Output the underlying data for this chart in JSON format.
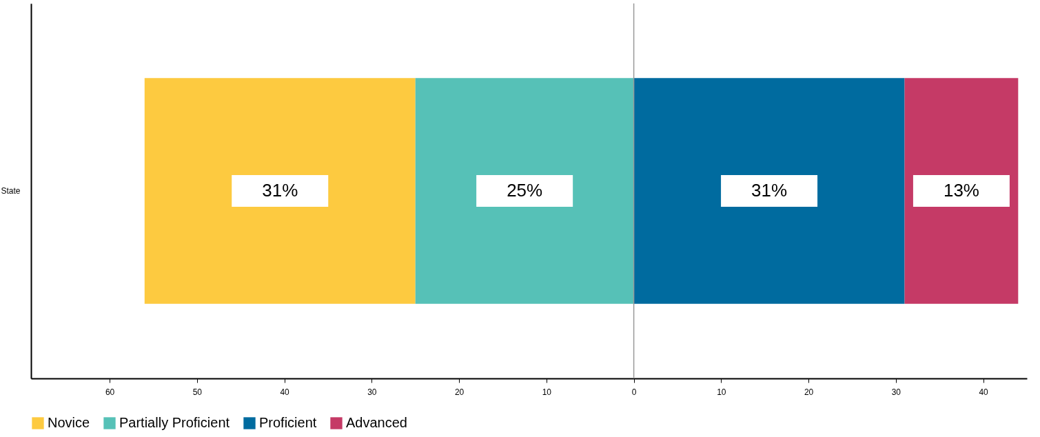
{
  "chart_data": {
    "type": "bar",
    "orientation": "horizontal",
    "categories": [
      "State"
    ],
    "series": [
      {
        "name": "Novice",
        "color": "#fdca40",
        "values": [
          31
        ],
        "base": [
          -56
        ],
        "value_labels": [
          "31%"
        ]
      },
      {
        "name": "Partially Proficient",
        "color": "#56c1b7",
        "values": [
          25
        ],
        "base": [
          -25
        ],
        "value_labels": [
          "25%"
        ]
      },
      {
        "name": "Proficient",
        "color": "#006b9f",
        "values": [
          31
        ],
        "base": [
          0
        ],
        "value_labels": [
          "31%"
        ]
      },
      {
        "name": "Advanced",
        "color": "#c53a66",
        "values": [
          13
        ],
        "base": [
          31
        ],
        "value_labels": [
          "13%"
        ]
      }
    ],
    "xlim": [
      -69,
      45
    ],
    "xticks": [
      {
        "value": -60,
        "label": "60"
      },
      {
        "value": -50,
        "label": "50"
      },
      {
        "value": -40,
        "label": "40"
      },
      {
        "value": -30,
        "label": "30"
      },
      {
        "value": -20,
        "label": "20"
      },
      {
        "value": -10,
        "label": "10"
      },
      0,
      10,
      20,
      30,
      40
    ],
    "ref_lines": [
      {
        "axis": "x",
        "value": 0,
        "color": "#999999"
      }
    ],
    "grid": false,
    "legend": "bottom"
  }
}
